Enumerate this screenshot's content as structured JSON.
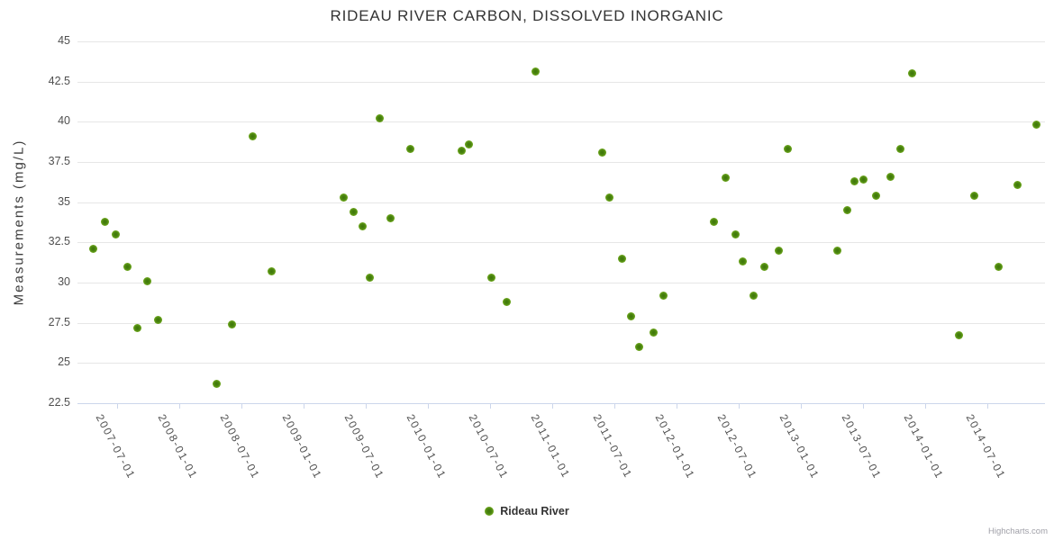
{
  "chart_data": {
    "type": "scatter",
    "title": "RIDEAU RIVER CARBON, DISSOLVED INORGANIC",
    "xlabel": "",
    "ylabel": "Measurements (mg/L)",
    "ylim": [
      22.5,
      45
    ],
    "xlim": [
      2007.18,
      2014.96
    ],
    "grid": true,
    "legend_position": "bottom-center",
    "y_ticks": [
      45,
      42.5,
      40,
      37.5,
      35,
      32.5,
      30,
      27.5,
      25,
      22.5
    ],
    "x_ticks": [
      {
        "label": "2007-07-01",
        "year": 2007.5
      },
      {
        "label": "2008-01-01",
        "year": 2008.0
      },
      {
        "label": "2008-07-01",
        "year": 2008.5
      },
      {
        "label": "2009-01-01",
        "year": 2009.0
      },
      {
        "label": "2009-07-01",
        "year": 2009.5
      },
      {
        "label": "2010-01-01",
        "year": 2010.0
      },
      {
        "label": "2010-07-01",
        "year": 2010.5
      },
      {
        "label": "2011-01-01",
        "year": 2011.0
      },
      {
        "label": "2011-07-01",
        "year": 2011.5
      },
      {
        "label": "2012-01-01",
        "year": 2012.0
      },
      {
        "label": "2012-07-01",
        "year": 2012.5
      },
      {
        "label": "2013-01-01",
        "year": 2013.0
      },
      {
        "label": "2013-07-01",
        "year": 2013.5
      },
      {
        "label": "2014-01-01",
        "year": 2014.0
      },
      {
        "label": "2014-07-01",
        "year": 2014.5
      }
    ],
    "series": [
      {
        "name": "Rideau River",
        "marker_color_outer": "#86c42b",
        "marker_color_inner": "#3e7608",
        "points": [
          [
            2007.31,
            32.1
          ],
          [
            2007.4,
            33.8
          ],
          [
            2007.49,
            33.0
          ],
          [
            2007.58,
            31.0
          ],
          [
            2007.66,
            27.2
          ],
          [
            2007.74,
            30.1
          ],
          [
            2007.83,
            27.7
          ],
          [
            2008.3,
            23.7
          ],
          [
            2008.42,
            27.4
          ],
          [
            2008.59,
            39.1
          ],
          [
            2008.74,
            30.7
          ],
          [
            2009.32,
            35.3
          ],
          [
            2009.4,
            34.4
          ],
          [
            2009.47,
            33.5
          ],
          [
            2009.53,
            30.3
          ],
          [
            2009.61,
            40.2
          ],
          [
            2009.7,
            34.0
          ],
          [
            2009.86,
            38.3
          ],
          [
            2010.27,
            38.2
          ],
          [
            2010.33,
            38.6
          ],
          [
            2010.51,
            30.3
          ],
          [
            2010.63,
            28.8
          ],
          [
            2010.86,
            43.1
          ],
          [
            2011.4,
            38.1
          ],
          [
            2011.46,
            35.3
          ],
          [
            2011.56,
            31.5
          ],
          [
            2011.63,
            27.9
          ],
          [
            2011.7,
            26.0
          ],
          [
            2011.81,
            26.9
          ],
          [
            2011.89,
            29.2
          ],
          [
            2012.3,
            33.8
          ],
          [
            2012.39,
            36.5
          ],
          [
            2012.47,
            33.0
          ],
          [
            2012.53,
            31.3
          ],
          [
            2012.62,
            29.2
          ],
          [
            2012.7,
            31.0
          ],
          [
            2012.82,
            32.0
          ],
          [
            2012.89,
            38.3
          ],
          [
            2013.29,
            32.0
          ],
          [
            2013.37,
            34.5
          ],
          [
            2013.43,
            36.3
          ],
          [
            2013.5,
            36.4
          ],
          [
            2013.6,
            35.4
          ],
          [
            2013.72,
            36.6
          ],
          [
            2013.8,
            38.3
          ],
          [
            2013.89,
            43.0
          ],
          [
            2014.27,
            26.7
          ],
          [
            2014.39,
            35.4
          ],
          [
            2014.59,
            31.0
          ],
          [
            2014.74,
            36.1
          ],
          [
            2014.89,
            39.8
          ]
        ]
      }
    ]
  },
  "credits": {
    "label": "Highcharts.com"
  },
  "colors": {
    "title": "#333333",
    "axis_label": "#4f4f4f",
    "grid": "#e6e6e6",
    "axis_line": "#ccd6eb",
    "legend_text": "#333333",
    "credits": "#a0a0a8"
  }
}
